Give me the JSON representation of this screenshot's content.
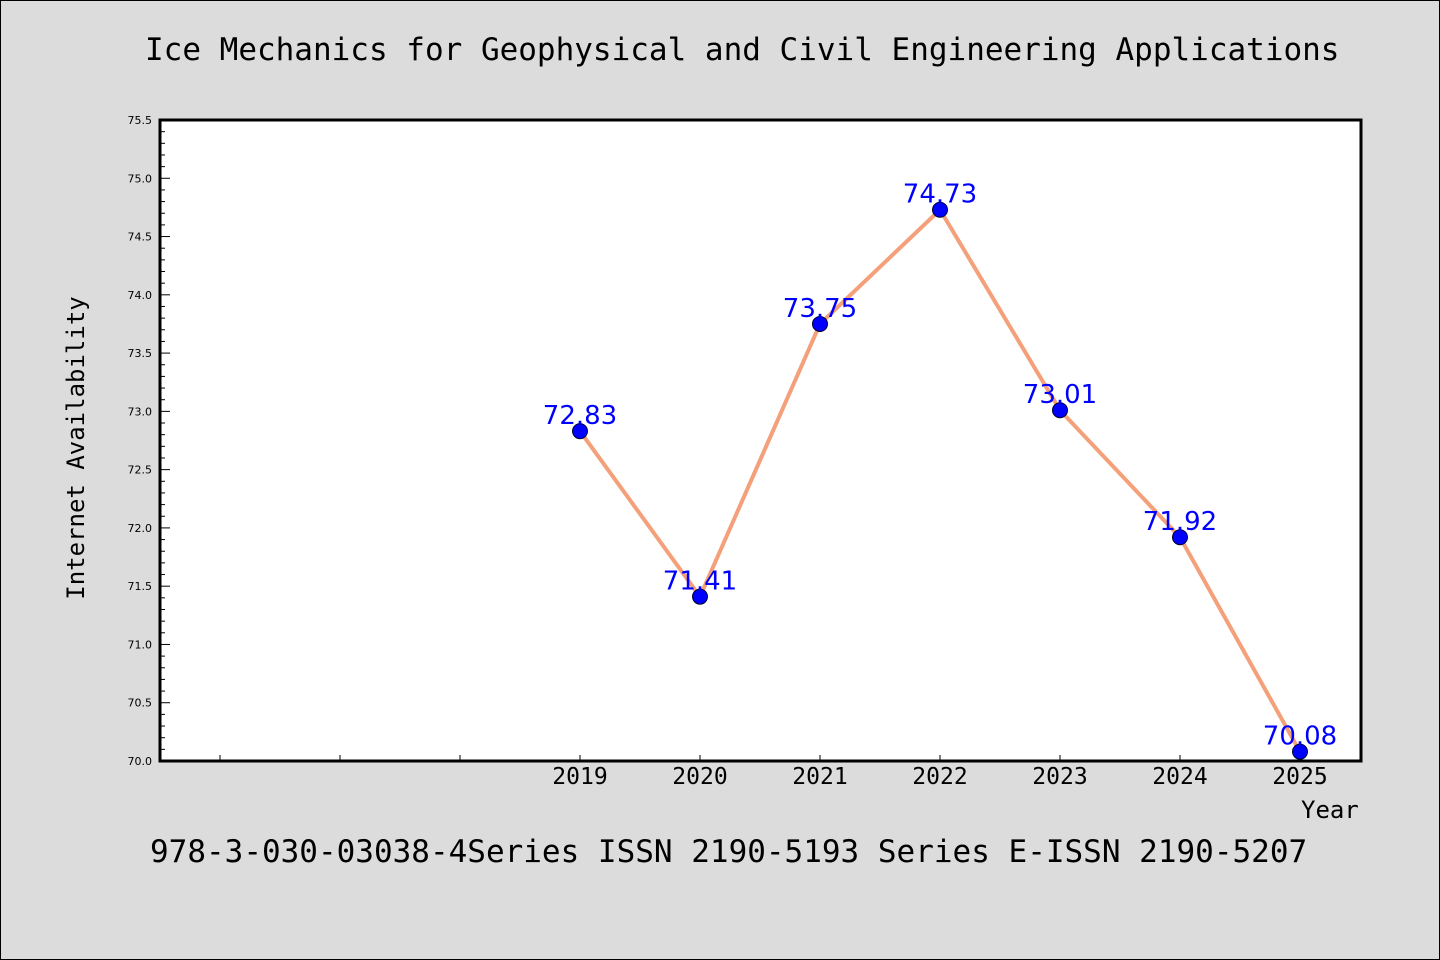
{
  "chart_data": {
    "type": "line",
    "title": "Ice Mechanics for Geophysical and Civil Engineering Applications",
    "xlabel": "Year",
    "ylabel": "Internet Availability",
    "footer": "978-3-030-03038-4Series ISSN 2190-5193 Series E-ISSN 2190-5207",
    "x": [
      "2019",
      "2020",
      "2021",
      "2022",
      "2023",
      "2024",
      "2025"
    ],
    "series": [
      {
        "values": [
          72.83,
          71.41,
          73.75,
          74.73,
          73.01,
          71.92,
          70.08
        ],
        "labels": [
          "72.83",
          "71.41",
          "73.75",
          "74.73",
          "73.01",
          "71.92",
          "70.08"
        ]
      }
    ],
    "ylim": [
      70.0,
      75.5
    ],
    "yticks": [
      "70.0",
      "70.5",
      "71.0",
      "71.5",
      "72.0",
      "72.5",
      "73.0",
      "73.5",
      "74.0",
      "74.5",
      "75.0",
      "75.5"
    ],
    "grid": false,
    "colors": {
      "line": "#f4a07a",
      "marker": "#0000ff",
      "data_label": "#0000ff",
      "background": "#dcdcdc",
      "plot_background": "#ffffff"
    }
  }
}
